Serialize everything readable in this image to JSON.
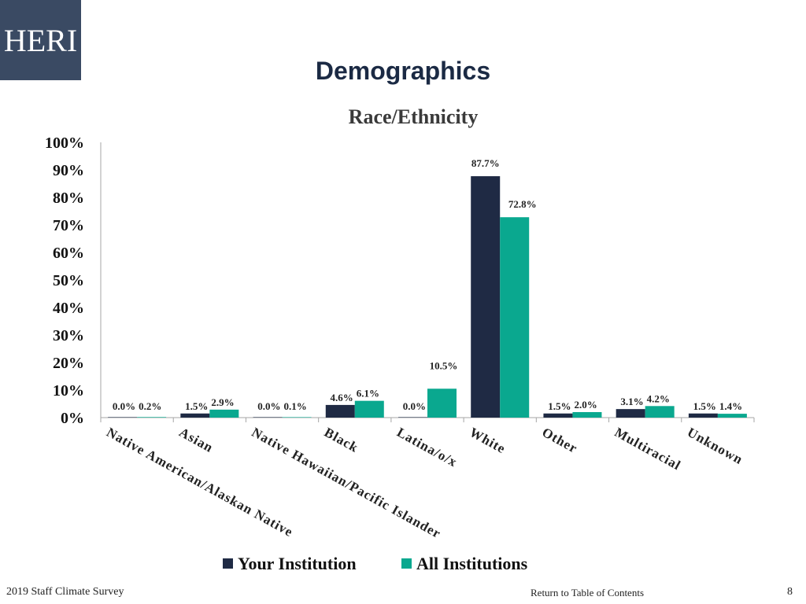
{
  "logo": {
    "text": "HERI"
  },
  "slide": {
    "title": "Demographics"
  },
  "footer": {
    "survey": "2019 Staff  Climate Survey",
    "toc_link": "Return to Table of Contents",
    "page_number": "8"
  },
  "colors": {
    "your_institution": "#1f2a44",
    "all_institutions": "#0aa88f",
    "axis": "#a6a6a6",
    "logo_bg": "#3a4a63"
  },
  "chart_data": {
    "type": "bar",
    "title": "Race/Ethnicity",
    "xlabel": "",
    "ylabel": "",
    "ylim": [
      0,
      100
    ],
    "yticks": [
      "0%",
      "10%",
      "20%",
      "30%",
      "40%",
      "50%",
      "60%",
      "70%",
      "80%",
      "90%",
      "100%"
    ],
    "grid": false,
    "legend": "bottom",
    "categories": [
      "Native American/Alaskan Native",
      "Asian",
      "Native Hawaiian/Pacific Islander",
      "Black",
      "Latina/o/x",
      "White",
      "Other",
      "Multiracial",
      "Unknown"
    ],
    "series": [
      {
        "name": "Your Institution",
        "values": [
          0.0,
          1.5,
          0.0,
          4.6,
          0.0,
          87.7,
          1.5,
          3.1,
          1.5
        ],
        "labels": [
          "0.0%",
          "1.5%",
          "0.0%",
          "4.6%",
          "0.0%",
          "87.7%",
          "1.5%",
          "3.1%",
          "1.5%"
        ]
      },
      {
        "name": "All Institutions",
        "values": [
          0.2,
          2.9,
          0.1,
          6.1,
          10.5,
          72.8,
          2.0,
          4.2,
          1.4
        ],
        "labels": [
          "0.2%",
          "2.9%",
          "0.1%",
          "6.1%",
          "10.5%",
          "72.8%",
          "2.0%",
          "4.2%",
          "1.4%"
        ]
      }
    ]
  }
}
